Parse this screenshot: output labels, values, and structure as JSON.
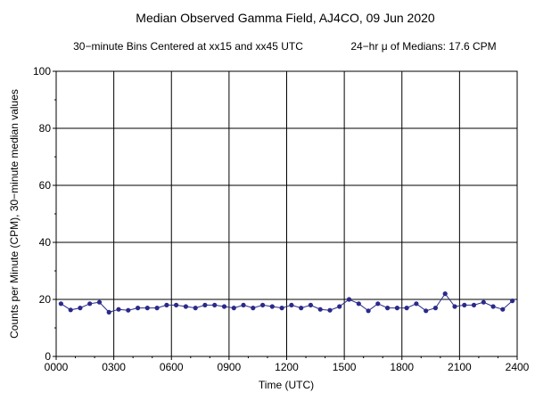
{
  "chart_data": {
    "type": "line",
    "title": "Median Observed Gamma Field, AJ4CO, 09 Jun 2020",
    "subtitle_left": "30−minute Bins Centered at xx15 and xx45 UTC",
    "subtitle_right": "24−hr μ of Medians: 17.6 CPM",
    "xlabel": "Time (UTC)",
    "ylabel": "Counts per Minute (CPM), 30−minute median values",
    "xlim": [
      0,
      2400
    ],
    "ylim": [
      0,
      100
    ],
    "x_ticks": [
      {
        "value": 0,
        "label": "0000"
      },
      {
        "value": 300,
        "label": "0300"
      },
      {
        "value": 600,
        "label": "0600"
      },
      {
        "value": 900,
        "label": "0900"
      },
      {
        "value": 1200,
        "label": "1200"
      },
      {
        "value": 1500,
        "label": "1500"
      },
      {
        "value": 1800,
        "label": "1800"
      },
      {
        "value": 2100,
        "label": "2100"
      },
      {
        "value": 2400,
        "label": "2400"
      }
    ],
    "y_ticks": [
      {
        "value": 0,
        "label": "0"
      },
      {
        "value": 20,
        "label": "20"
      },
      {
        "value": 40,
        "label": "40"
      },
      {
        "value": 60,
        "label": "60"
      },
      {
        "value": 80,
        "label": "80"
      },
      {
        "value": 100,
        "label": "100"
      }
    ],
    "grid": true,
    "series": [
      {
        "x": [
          "0015",
          "0045",
          "0115",
          "0145",
          "0215",
          "0245",
          "0315",
          "0345",
          "0415",
          "0445",
          "0515",
          "0545",
          "0615",
          "0645",
          "0715",
          "0745",
          "0815",
          "0845",
          "0915",
          "0945",
          "1015",
          "1045",
          "1115",
          "1145",
          "1215",
          "1245",
          "1315",
          "1345",
          "1415",
          "1445",
          "1515",
          "1545",
          "1615",
          "1645",
          "1715",
          "1745",
          "1815",
          "1845",
          "1915",
          "1945",
          "2015",
          "2045",
          "2115",
          "2145",
          "2215",
          "2245",
          "2315",
          "2345"
        ],
        "values": [
          18.5,
          16.3,
          17.0,
          18.5,
          19.0,
          15.5,
          16.5,
          16.2,
          17.0,
          17.0,
          17.0,
          18.0,
          18.0,
          17.5,
          17.0,
          18.0,
          18.0,
          17.5,
          17.0,
          18.0,
          17.0,
          18.0,
          17.5,
          17.0,
          18.0,
          17.0,
          18.0,
          16.5,
          16.2,
          17.5,
          20.0,
          18.5,
          16.0,
          18.5,
          17.0,
          17.0,
          17.0,
          18.5,
          16.0,
          17.0,
          22.0,
          17.5,
          18.0,
          18.0,
          19.0,
          17.5,
          16.5,
          19.5
        ],
        "color": "#2a2a8a"
      }
    ]
  }
}
